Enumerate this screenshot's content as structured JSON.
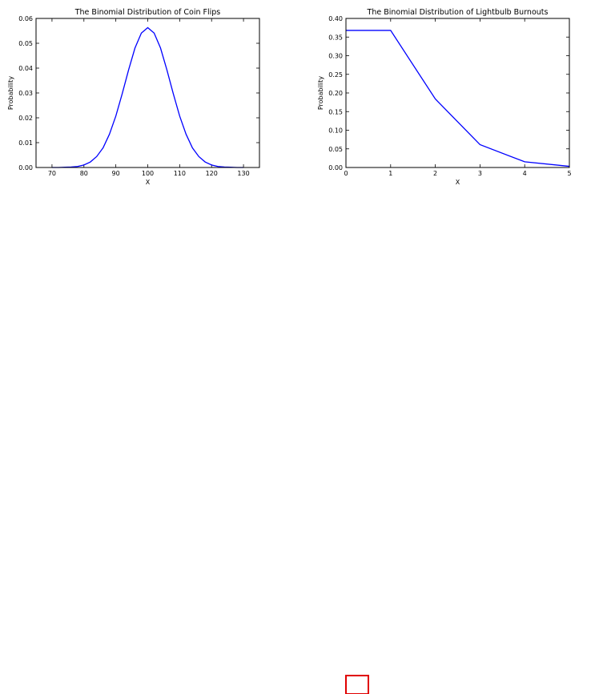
{
  "chart_data": [
    {
      "type": "line",
      "title": "The Binomial Distribution of Coin Flips",
      "xlabel": "X",
      "ylabel": "Probability",
      "x": [
        70,
        72,
        74,
        76,
        78,
        80,
        82,
        84,
        86,
        88,
        90,
        92,
        94,
        96,
        98,
        100,
        102,
        104,
        106,
        108,
        110,
        112,
        114,
        116,
        118,
        120,
        122,
        124,
        126,
        128,
        130
      ],
      "series": [
        {
          "color": "#0000ff",
          "values": [
            0,
            0,
            0.0001,
            0.0002,
            0.0004,
            0.001,
            0.0022,
            0.0044,
            0.0079,
            0.0134,
            0.0207,
            0.0297,
            0.0393,
            0.0481,
            0.0541,
            0.0563,
            0.0541,
            0.0481,
            0.0393,
            0.0297,
            0.0207,
            0.0134,
            0.0079,
            0.0044,
            0.0022,
            0.001,
            0.0004,
            0.0002,
            0.0001,
            0,
            0
          ]
        }
      ],
      "xlim": [
        65,
        135
      ],
      "xticks": [
        70,
        80,
        90,
        100,
        110,
        120,
        130
      ],
      "ylim": [
        0,
        0.06
      ],
      "yticks": [
        {
          "value": 0,
          "label": "0.00"
        },
        {
          "value": 0.01,
          "label": "0.01"
        },
        {
          "value": 0.02,
          "label": "0.02"
        },
        {
          "value": 0.03,
          "label": "0.03"
        },
        {
          "value": 0.04,
          "label": "0.04"
        },
        {
          "value": 0.05,
          "label": "0.05"
        },
        {
          "value": 0.06,
          "label": "0.06"
        }
      ]
    },
    {
      "type": "line",
      "title": "The Binomial Distribution of Lightbulb Burnouts",
      "xlabel": "X",
      "ylabel": "Probability",
      "x": [
        0,
        1,
        2,
        3,
        4,
        5
      ],
      "series": [
        {
          "color": "#0000ff",
          "values": [
            0.3679,
            0.3679,
            0.1839,
            0.0613,
            0.0153,
            0.0031
          ]
        }
      ],
      "xlim": [
        0,
        5
      ],
      "xticks": [
        0,
        1,
        2,
        3,
        4,
        5
      ],
      "ylim": [
        0,
        0.4
      ],
      "yticks": [
        {
          "value": 0,
          "label": "0.00"
        },
        {
          "value": 0.05,
          "label": "0.05"
        },
        {
          "value": 0.1,
          "label": "0.10"
        },
        {
          "value": 0.15,
          "label": "0.15"
        },
        {
          "value": 0.2,
          "label": "0.20"
        },
        {
          "value": 0.25,
          "label": "0.25"
        },
        {
          "value": 0.3,
          "label": "0.30"
        },
        {
          "value": 0.35,
          "label": "0.35"
        },
        {
          "value": 0.4,
          "label": "0.40"
        }
      ]
    }
  ]
}
